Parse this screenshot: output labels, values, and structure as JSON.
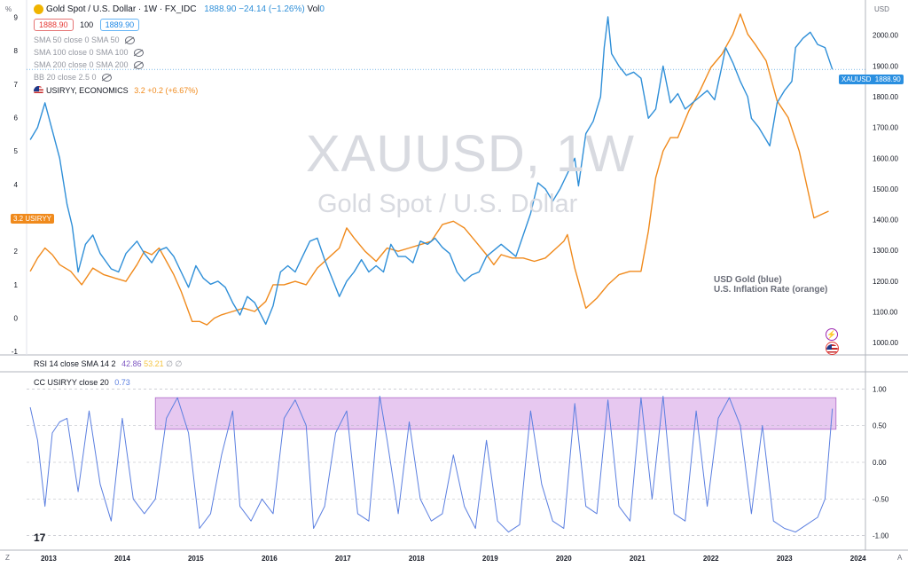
{
  "header": {
    "symbol_title": "Gold Spot / U.S. Dollar · 1W · FX_IDC",
    "price_stats": "1888.90  −24.14 (−1.26%)",
    "vol_label": "Vol",
    "vol_value": "0",
    "bid": "1888.90",
    "spread": "100",
    "ask": "1889.90",
    "corner_left": "%",
    "corner_right": "USD",
    "corner_bottom_left": "Z",
    "corner_bottom_right": "A"
  },
  "indicators": [
    {
      "label": "SMA 50 close 0 SMA 50"
    },
    {
      "label": "SMA 100 close 0 SMA 100"
    },
    {
      "label": "SMA 200 close 0 SMA 200"
    },
    {
      "label": "BB 20 close 2.5 0"
    }
  ],
  "overlay": {
    "label": "USIRYY, ECONOMICS",
    "value": "3.2",
    "change": "+0.2 (+6.67%)"
  },
  "watermark": {
    "line1": "XAUUSD, 1W",
    "line2": "Gold Spot / U.S. Dollar"
  },
  "annotation": {
    "line1": "USD Gold (blue)",
    "line2": "U.S. Inflation Rate (orange)"
  },
  "price_tag": {
    "symbol": "XAUUSD",
    "value": "1888.90"
  },
  "left_tag": {
    "value": "3.2",
    "symbol": "USIRYY"
  },
  "rsi_pane": {
    "label": "RSI 14 close SMA 14 2",
    "value1": "42.86",
    "value2": "53.21",
    "null1": "∅",
    "null2": "∅"
  },
  "cc_pane": {
    "label": "CC USIRYY close 20",
    "value": "0.73"
  },
  "colors": {
    "gold": "#2f8fd8",
    "inflation": "#f08a1c",
    "cc_line": "#5b7fe0",
    "band_fill": "#e7c8f0",
    "band_stroke": "#b06ac8",
    "tag_blue": "#2a8fe0",
    "tag_orange": "#f08a1c"
  },
  "chart_data": [
    {
      "type": "line",
      "title": "XAUUSD, 1W",
      "x_ticks": [
        "2013",
        "2014",
        "2015",
        "2016",
        "2017",
        "2018",
        "2019",
        "2020",
        "2021",
        "2022",
        "2023",
        "2024"
      ],
      "xlim": [
        2012.7,
        2024.1
      ],
      "right_axis": {
        "ticks": [
          "1000.00",
          "1100.00",
          "1200.00",
          "1300.00",
          "1400.00",
          "1500.00",
          "1600.00",
          "1700.00",
          "1800.00",
          "1900.00",
          "2000.00"
        ],
        "ylim": [
          960,
          2080
        ]
      },
      "left_axis": {
        "ticks": [
          "-1",
          "0",
          "1",
          "2",
          "3",
          "4",
          "5",
          "6",
          "7",
          "8",
          "9"
        ],
        "ylim": [
          -1.1,
          9.2
        ]
      },
      "series": [
        {
          "axis": "right",
          "color": "#2f8fd8",
          "x": [
            2012.75,
            2012.85,
            2012.95,
            2013.05,
            2013.15,
            2013.25,
            2013.32,
            2013.4,
            2013.5,
            2013.6,
            2013.7,
            2013.85,
            2013.95,
            2014.05,
            2014.2,
            2014.3,
            2014.4,
            2014.5,
            2014.6,
            2014.7,
            2014.8,
            2014.9,
            2015.0,
            2015.1,
            2015.2,
            2015.3,
            2015.4,
            2015.5,
            2015.6,
            2015.7,
            2015.8,
            2015.95,
            2016.05,
            2016.15,
            2016.25,
            2016.35,
            2016.45,
            2016.55,
            2016.65,
            2016.75,
            2016.85,
            2016.95,
            2017.05,
            2017.15,
            2017.25,
            2017.35,
            2017.45,
            2017.55,
            2017.65,
            2017.75,
            2017.85,
            2017.95,
            2018.05,
            2018.15,
            2018.25,
            2018.35,
            2018.45,
            2018.55,
            2018.65,
            2018.75,
            2018.85,
            2018.95,
            2019.05,
            2019.15,
            2019.25,
            2019.35,
            2019.45,
            2019.55,
            2019.65,
            2019.75,
            2019.85,
            2019.95,
            2020.05,
            2020.15,
            2020.2,
            2020.3,
            2020.4,
            2020.5,
            2020.55,
            2020.6,
            2020.65,
            2020.75,
            2020.85,
            2020.95,
            2021.05,
            2021.15,
            2021.25,
            2021.35,
            2021.45,
            2021.55,
            2021.65,
            2021.75,
            2021.85,
            2021.95,
            2022.05,
            2022.15,
            2022.2,
            2022.3,
            2022.4,
            2022.5,
            2022.55,
            2022.65,
            2022.75,
            2022.8,
            2022.9,
            2023.0,
            2023.1,
            2023.15,
            2023.25,
            2023.35,
            2023.45,
            2023.55,
            2023.65
          ],
          "y": [
            1660,
            1700,
            1780,
            1690,
            1600,
            1450,
            1380,
            1230,
            1320,
            1350,
            1290,
            1240,
            1230,
            1290,
            1330,
            1290,
            1260,
            1300,
            1310,
            1280,
            1230,
            1180,
            1250,
            1210,
            1190,
            1200,
            1180,
            1130,
            1090,
            1150,
            1130,
            1060,
            1120,
            1230,
            1250,
            1230,
            1280,
            1330,
            1340,
            1270,
            1210,
            1150,
            1200,
            1230,
            1270,
            1230,
            1250,
            1230,
            1320,
            1280,
            1280,
            1260,
            1330,
            1320,
            1340,
            1310,
            1290,
            1230,
            1200,
            1220,
            1230,
            1280,
            1300,
            1320,
            1300,
            1280,
            1350,
            1420,
            1520,
            1500,
            1460,
            1500,
            1550,
            1600,
            1510,
            1680,
            1720,
            1800,
            1960,
            2060,
            1940,
            1900,
            1870,
            1880,
            1860,
            1730,
            1760,
            1900,
            1780,
            1810,
            1760,
            1780,
            1800,
            1820,
            1790,
            1900,
            1960,
            1910,
            1850,
            1800,
            1730,
            1700,
            1660,
            1640,
            1780,
            1820,
            1850,
            1960,
            1990,
            2010,
            1970,
            1960,
            1888.9
          ]
        },
        {
          "axis": "left",
          "color": "#f08a1c",
          "x": [
            2012.75,
            2012.85,
            2012.95,
            2013.05,
            2013.15,
            2013.3,
            2013.45,
            2013.6,
            2013.75,
            2013.9,
            2014.05,
            2014.2,
            2014.3,
            2014.4,
            2014.5,
            2014.6,
            2014.7,
            2014.8,
            2014.95,
            2015.05,
            2015.15,
            2015.25,
            2015.35,
            2015.5,
            2015.65,
            2015.8,
            2015.95,
            2016.05,
            2016.2,
            2016.35,
            2016.5,
            2016.65,
            2016.8,
            2016.95,
            2017.05,
            2017.15,
            2017.3,
            2017.45,
            2017.6,
            2017.75,
            2017.9,
            2018.05,
            2018.2,
            2018.35,
            2018.5,
            2018.65,
            2018.8,
            2018.95,
            2019.05,
            2019.15,
            2019.3,
            2019.45,
            2019.6,
            2019.75,
            2019.9,
            2020.0,
            2020.05,
            2020.15,
            2020.3,
            2020.45,
            2020.6,
            2020.75,
            2020.9,
            2021.05,
            2021.15,
            2021.25,
            2021.35,
            2021.45,
            2021.55,
            2021.7,
            2021.85,
            2022.0,
            2022.15,
            2022.3,
            2022.4,
            2022.5,
            2022.6,
            2022.75,
            2022.9,
            2023.05,
            2023.2,
            2023.3,
            2023.4,
            2023.5,
            2023.6
          ],
          "y": [
            1.4,
            1.8,
            2.1,
            1.9,
            1.6,
            1.4,
            1.0,
            1.5,
            1.3,
            1.2,
            1.1,
            1.6,
            2.0,
            1.9,
            2.1,
            1.7,
            1.3,
            0.8,
            -0.1,
            -0.1,
            -0.2,
            0.0,
            0.1,
            0.2,
            0.3,
            0.2,
            0.5,
            1.0,
            1.0,
            1.1,
            1.0,
            1.5,
            1.8,
            2.1,
            2.7,
            2.4,
            2.0,
            1.7,
            2.1,
            2.0,
            2.1,
            2.2,
            2.3,
            2.8,
            2.9,
            2.7,
            2.3,
            1.9,
            1.6,
            1.9,
            1.8,
            1.8,
            1.7,
            1.8,
            2.1,
            2.3,
            2.5,
            1.5,
            0.3,
            0.6,
            1.0,
            1.3,
            1.4,
            1.4,
            2.6,
            4.2,
            5.0,
            5.4,
            5.4,
            6.2,
            6.8,
            7.5,
            7.9,
            8.5,
            9.1,
            8.5,
            8.2,
            7.7,
            6.5,
            6.0,
            5.0,
            4.0,
            3.0,
            3.1,
            3.2
          ]
        }
      ]
    },
    {
      "type": "line",
      "title": "CC USIRYY close 20",
      "y_ticks": [
        "1.00",
        "0.50",
        "0.00",
        "-0.50",
        "-1.00"
      ],
      "ylim": [
        -1.1,
        1.1
      ],
      "xlim": [
        2012.7,
        2024.1
      ],
      "band": [
        0.45,
        0.88
      ],
      "series": [
        {
          "color": "#5b7fe0",
          "x": [
            2012.75,
            2012.85,
            2012.95,
            2013.05,
            2013.15,
            2013.25,
            2013.4,
            2013.55,
            2013.7,
            2013.85,
            2014.0,
            2014.15,
            2014.3,
            2014.45,
            2014.6,
            2014.75,
            2014.9,
            2015.05,
            2015.2,
            2015.35,
            2015.5,
            2015.6,
            2015.75,
            2015.9,
            2016.05,
            2016.2,
            2016.35,
            2016.5,
            2016.6,
            2016.75,
            2016.9,
            2017.05,
            2017.2,
            2017.35,
            2017.5,
            2017.6,
            2017.75,
            2017.9,
            2018.05,
            2018.2,
            2018.35,
            2018.5,
            2018.65,
            2018.8,
            2018.95,
            2019.1,
            2019.25,
            2019.4,
            2019.55,
            2019.7,
            2019.85,
            2020.0,
            2020.15,
            2020.3,
            2020.45,
            2020.6,
            2020.75,
            2020.9,
            2021.05,
            2021.2,
            2021.35,
            2021.5,
            2021.65,
            2021.8,
            2021.95,
            2022.1,
            2022.25,
            2022.4,
            2022.55,
            2022.7,
            2022.85,
            2023.0,
            2023.15,
            2023.3,
            2023.45,
            2023.55,
            2023.65
          ],
          "y": [
            0.75,
            0.3,
            -0.6,
            0.4,
            0.55,
            0.6,
            -0.4,
            0.7,
            -0.3,
            -0.8,
            0.6,
            -0.5,
            -0.7,
            -0.5,
            0.6,
            0.88,
            0.4,
            -0.9,
            -0.7,
            0.1,
            0.7,
            -0.6,
            -0.8,
            -0.5,
            -0.7,
            0.6,
            0.85,
            0.5,
            -0.9,
            -0.6,
            0.4,
            0.7,
            -0.7,
            -0.8,
            0.9,
            0.3,
            -0.7,
            0.55,
            -0.5,
            -0.8,
            -0.7,
            0.1,
            -0.6,
            -0.9,
            0.3,
            -0.8,
            -0.95,
            -0.85,
            0.7,
            -0.3,
            -0.8,
            -0.9,
            0.8,
            -0.6,
            -0.7,
            0.85,
            -0.6,
            -0.8,
            0.88,
            -0.5,
            0.9,
            -0.7,
            -0.8,
            0.7,
            -0.6,
            0.6,
            0.88,
            0.5,
            -0.7,
            0.5,
            -0.8,
            -0.9,
            -0.95,
            -0.85,
            -0.75,
            -0.5,
            0.73
          ]
        }
      ]
    }
  ]
}
